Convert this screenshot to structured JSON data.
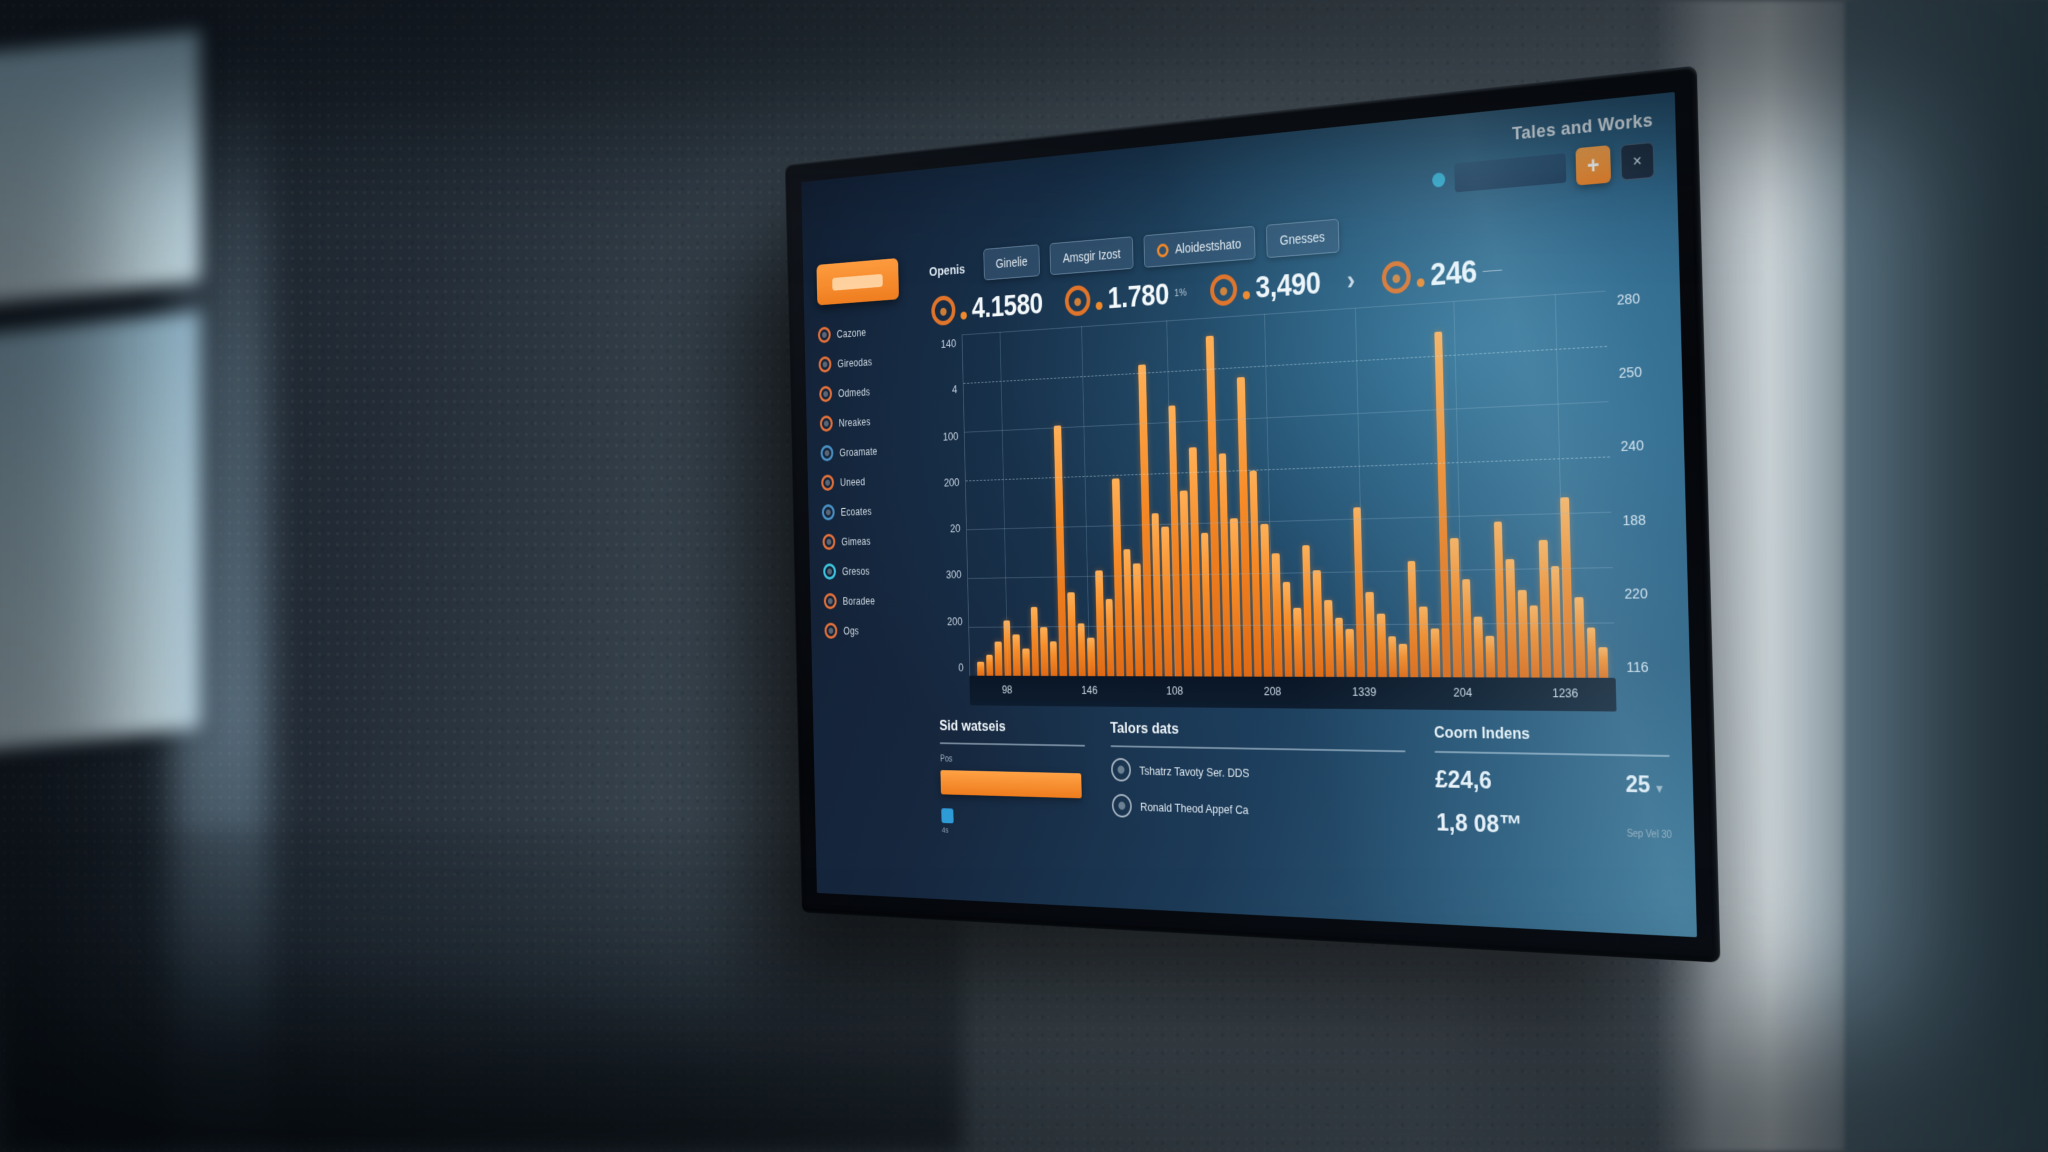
{
  "header": {
    "title": "Tales and Works",
    "add_button_icon": "+",
    "close_button_icon": "×",
    "status_dot_color": "#35b6d9",
    "accent_color": "#f08a2c"
  },
  "tabs": [
    {
      "label": "Ginelie",
      "has_icon": false
    },
    {
      "label": "Amsgir Izost",
      "has_icon": false
    },
    {
      "label": "Aloidestshato",
      "has_icon": true
    },
    {
      "label": "Gnesses",
      "has_icon": false
    }
  ],
  "kpi": {
    "section_label": "Openis",
    "divider_icon": "›",
    "items": [
      {
        "value": "4.1580",
        "suffix": ""
      },
      {
        "value": "1.780",
        "suffix": "1%"
      },
      {
        "value": "3,490",
        "suffix": ""
      },
      {
        "value": "246",
        "suffix": "——"
      }
    ]
  },
  "sidebar": {
    "active_color": "#ee7d1f",
    "items": [
      {
        "label": "Cazone",
        "icon_color": "#e2703a"
      },
      {
        "label": "Gireodas",
        "icon_color": "#e2703a"
      },
      {
        "label": "Odmeds",
        "icon_color": "#e2703a"
      },
      {
        "label": "Nreakes",
        "icon_color": "#e2703a"
      },
      {
        "label": "Groamate",
        "icon_color": "#4a90c4"
      },
      {
        "label": "Uneed",
        "icon_color": "#e2703a"
      },
      {
        "label": "Ecoates",
        "icon_color": "#4a90c4"
      },
      {
        "label": "Gimeas",
        "icon_color": "#e2703a"
      },
      {
        "label": "Gresos",
        "icon_color": "#3ec6e0"
      },
      {
        "label": "Boradee",
        "icon_color": "#e2703a"
      },
      {
        "label": "Ogs",
        "icon_color": "#e2703a"
      }
    ]
  },
  "chart_data": {
    "type": "bar",
    "title": "",
    "xlabel": "",
    "ylabel": "",
    "values_unit": "percent-of-max (axis labels illegible in source)",
    "values": [
      4,
      6,
      10,
      16,
      12,
      8,
      20,
      14,
      10,
      72,
      24,
      15,
      11,
      30,
      22,
      56,
      36,
      32,
      88,
      46,
      42,
      76,
      52,
      64,
      40,
      95,
      62,
      44,
      83,
      57,
      42,
      34,
      26,
      19,
      36,
      29,
      21,
      16,
      13,
      46,
      23,
      17,
      11,
      9,
      31,
      19,
      13,
      92,
      37,
      26,
      16,
      11,
      41,
      31,
      23,
      19,
      36,
      29,
      47,
      21,
      13,
      8
    ],
    "x_tick_labels": [
      "98",
      "146",
      "108",
      "208",
      "1339",
      "204",
      "1236"
    ],
    "x_tick_positions_pct": [
      6.5,
      20.5,
      34.5,
      50,
      64,
      78.5,
      93
    ],
    "y_left_labels": [
      "140",
      "4",
      "100",
      "200",
      "20",
      "300",
      "200",
      "0"
    ],
    "y_right_labels": [
      "280",
      "250",
      "240",
      "188",
      "220",
      "116"
    ],
    "bar_color": "#f5882b",
    "grid": true,
    "legend": "none",
    "ylim": [
      0,
      100
    ]
  },
  "panels": {
    "progress_panel": {
      "title": "Sid watseis",
      "label": "Pos",
      "progress_pct": 97,
      "progress_color": "#ee7c1d",
      "icon_caption": "4s",
      "icon_color": "#2f9bd6"
    },
    "list_panel": {
      "title": "Talors dats",
      "rows": [
        {
          "text": "Tshatrz Tavoty Ser. DDS"
        },
        {
          "text": "Ronald Theod Appef Ca"
        }
      ]
    },
    "stats_panel": {
      "title": "Coorn Indens",
      "primary_value": "£24,6",
      "secondary_value": "1,8 08™",
      "side_value": "25",
      "side_caret": "▼",
      "side_caption": "Sep Vel 30"
    }
  }
}
